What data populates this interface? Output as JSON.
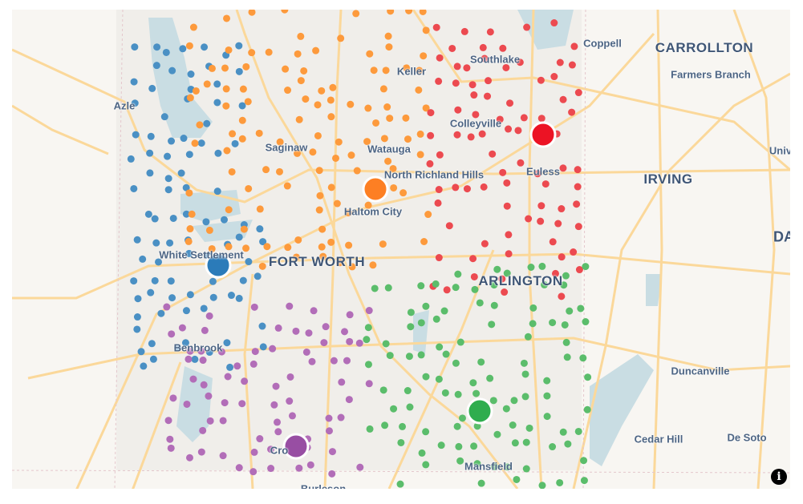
{
  "map": {
    "place_labels": [
      {
        "id": "azle",
        "text": "Azle",
        "size": "small"
      },
      {
        "id": "saginaw",
        "text": "Saginaw",
        "size": "small"
      },
      {
        "id": "keller",
        "text": "Keller",
        "size": "small"
      },
      {
        "id": "southlake",
        "text": "Southlake",
        "size": "small"
      },
      {
        "id": "colleyville",
        "text": "Colleyville",
        "size": "small"
      },
      {
        "id": "watauga",
        "text": "Watauga",
        "size": "small"
      },
      {
        "id": "nrh",
        "text": "North Richland Hills",
        "size": "small"
      },
      {
        "id": "haltom",
        "text": "Haltom City",
        "size": "small"
      },
      {
        "id": "euless",
        "text": "Euless",
        "size": "small"
      },
      {
        "id": "coppell",
        "text": "Coppell",
        "size": "small"
      },
      {
        "id": "carrollton",
        "text": "CARROLLTON",
        "size": "big"
      },
      {
        "id": "farmers",
        "text": "Farmers Branch",
        "size": "small"
      },
      {
        "id": "irving",
        "text": "IRVING",
        "size": "big"
      },
      {
        "id": "univ",
        "text": "Univ",
        "size": "small"
      },
      {
        "id": "dallas",
        "text": "DA",
        "size": "city"
      },
      {
        "id": "whitesettlement",
        "text": "White Settlement",
        "size": "small"
      },
      {
        "id": "fortworth",
        "text": "FORT WORTH",
        "size": "big"
      },
      {
        "id": "arlington",
        "text": "ARLINGTON",
        "size": "big"
      },
      {
        "id": "benbrook",
        "text": "Benbrook",
        "size": "small"
      },
      {
        "id": "duncanville",
        "text": "Duncanville",
        "size": "small"
      },
      {
        "id": "cedarhill",
        "text": "Cedar Hill",
        "size": "small"
      },
      {
        "id": "desoto",
        "text": "De Soto",
        "size": "small"
      },
      {
        "id": "mansfield",
        "text": "Mansfield",
        "size": "small"
      },
      {
        "id": "crowley",
        "text": "Cro",
        "size": "small"
      },
      {
        "id": "burleson",
        "text": "Burleson",
        "size": "small"
      }
    ],
    "clusters": [
      {
        "name": "blue",
        "color": "#2b7bb9",
        "point_color": "#4a90c4"
      },
      {
        "name": "orange",
        "color": "#fd7f23",
        "point_color": "#fd9a3c"
      },
      {
        "name": "red",
        "color": "#ec1324",
        "point_color": "#ec4a50"
      },
      {
        "name": "green",
        "color": "#2fad4e",
        "point_color": "#5bbd6b"
      },
      {
        "name": "purple",
        "color": "#984ea3",
        "point_color": "#b26db8"
      }
    ],
    "info_icon": "i"
  }
}
